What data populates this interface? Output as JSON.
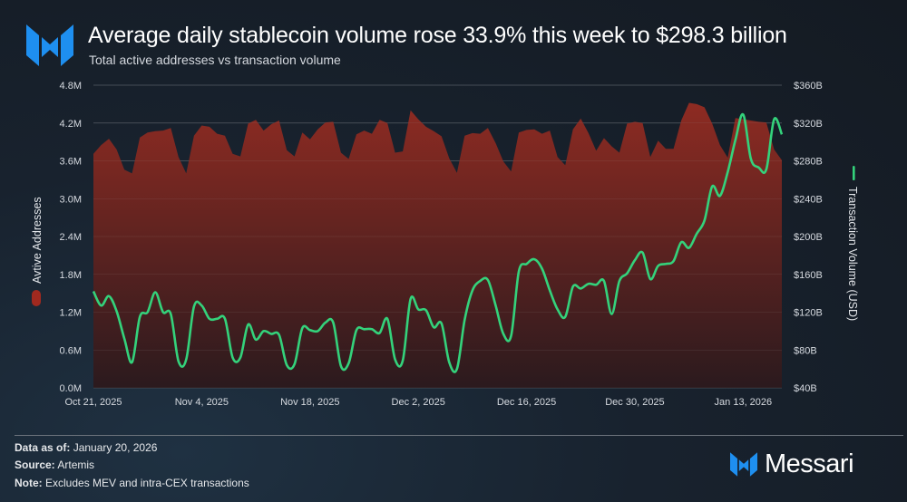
{
  "header": {
    "title": "Average daily stablecoin volume rose 33.9% this week to $298.3 billion",
    "subtitle": "Total active addresses vs transaction volume",
    "logo_icon": "messari-m-logo"
  },
  "colors": {
    "area_top": "#8e2b22",
    "area_bottom": "#2b1a1e",
    "line": "#34d27b",
    "brand_blue": "#1e8ff0"
  },
  "chart_data": {
    "type": "area+line",
    "title": "Average daily stablecoin volume rose 33.9% this week to $298.3 billion",
    "start_date": "2025-10-21",
    "x_ticks": [
      {
        "label": "Oct 21, 2025",
        "day": 0
      },
      {
        "label": "Nov 4, 2025",
        "day": 14
      },
      {
        "label": "Nov 18, 2025",
        "day": 28
      },
      {
        "label": "Dec 2, 2025",
        "day": 42
      },
      {
        "label": "Dec 16, 2025",
        "day": 56
      },
      {
        "label": "Dec 30, 2025",
        "day": 70
      },
      {
        "label": "Jan 13, 2026",
        "day": 84
      }
    ],
    "y_left": {
      "label": "Avtive Addresses",
      "ylim": [
        0,
        4800000
      ],
      "ticks": [
        {
          "v": 0,
          "label": "0.0M"
        },
        {
          "v": 600000,
          "label": "0.6M"
        },
        {
          "v": 1200000,
          "label": "1.2M"
        },
        {
          "v": 1800000,
          "label": "1.8M"
        },
        {
          "v": 2400000,
          "label": "2.4M"
        },
        {
          "v": 3000000,
          "label": "3.0M"
        },
        {
          "v": 3600000,
          "label": "3.6M"
        },
        {
          "v": 4200000,
          "label": "4.2M"
        },
        {
          "v": 4800000,
          "label": "4.8M"
        }
      ]
    },
    "y_right": {
      "label": "Transaction Volume (USD)",
      "ylim": [
        40,
        360
      ],
      "ticks": [
        {
          "v": 40,
          "label": "$40B"
        },
        {
          "v": 80,
          "label": "$80B"
        },
        {
          "v": 120,
          "label": "$120B"
        },
        {
          "v": 160,
          "label": "$160B"
        },
        {
          "v": 200,
          "label": "$200B"
        },
        {
          "v": 240,
          "label": "$240B"
        },
        {
          "v": 280,
          "label": "$280B"
        },
        {
          "v": 320,
          "label": "$320B"
        },
        {
          "v": 360,
          "label": "$360B"
        }
      ]
    },
    "grid": true,
    "series": [
      {
        "name": "Active Addresses (M)",
        "type": "area",
        "axis": "left",
        "values": [
          3.71,
          3.85,
          3.95,
          3.78,
          3.46,
          3.4,
          3.97,
          4.05,
          4.07,
          4.08,
          4.12,
          3.66,
          3.4,
          4.0,
          4.16,
          4.14,
          4.03,
          4.0,
          3.71,
          3.67,
          4.19,
          4.25,
          4.08,
          4.18,
          4.24,
          3.77,
          3.67,
          4.05,
          3.94,
          4.1,
          4.21,
          4.22,
          3.73,
          3.63,
          4.02,
          4.08,
          4.03,
          4.25,
          4.2,
          3.73,
          3.75,
          4.4,
          4.26,
          4.14,
          4.07,
          3.99,
          3.64,
          3.41,
          4.0,
          4.04,
          4.03,
          4.12,
          3.88,
          3.59,
          3.43,
          4.05,
          4.09,
          4.1,
          4.03,
          4.08,
          3.66,
          3.53,
          4.1,
          4.27,
          4.04,
          3.76,
          3.96,
          3.83,
          3.73,
          4.19,
          4.22,
          4.2,
          3.66,
          3.92,
          3.79,
          3.79,
          4.24,
          4.52,
          4.5,
          4.45,
          4.19,
          3.85,
          3.65,
          4.28,
          4.26,
          4.24,
          4.22,
          4.21,
          3.78,
          3.61
        ]
      },
      {
        "name": "Transaction Volume ($B)",
        "type": "line",
        "axis": "right",
        "values": [
          142,
          127,
          137,
          121,
          92,
          67,
          115,
          120,
          141,
          120,
          118,
          68,
          70,
          126,
          127,
          113,
          113,
          113,
          72,
          72,
          107,
          91,
          100,
          97,
          96,
          64,
          65,
          103,
          101,
          100,
          109,
          109,
          63,
          66,
          101,
          102,
          102,
          98,
          113,
          70,
          69,
          134,
          123,
          122,
          104,
          108,
          67,
          60,
          112,
          143,
          153,
          154,
          127,
          97,
          95,
          163,
          171,
          176,
          166,
          143,
          123,
          115,
          147,
          145,
          150,
          149,
          153,
          118,
          153,
          161,
          175,
          183,
          155,
          169,
          171,
          174,
          194,
          188,
          203,
          217,
          253,
          243,
          268,
          302,
          329,
          282,
          273,
          271,
          324,
          308
        ]
      }
    ],
    "legend": [
      {
        "label": "Avtive Addresses",
        "placement": "left",
        "icon": "red-pill-swatch"
      },
      {
        "label": "Transaction Volume (USD)",
        "placement": "right",
        "icon": "green-line-swatch"
      }
    ]
  },
  "footer": {
    "data_as_of_label": "Data as of:",
    "data_as_of_value": "January 20, 2026",
    "source_label": "Source:",
    "source_value": "Artemis",
    "note_label": "Note:",
    "note_value": "Excludes MEV and intra-CEX transactions",
    "brand": "Messari"
  }
}
